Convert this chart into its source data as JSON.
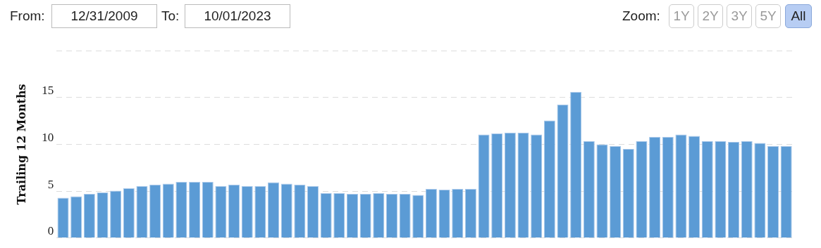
{
  "chart_data": {
    "type": "bar",
    "ylabel": "Trailing 12 Months",
    "categories": [
      null,
      null,
      null,
      null,
      null,
      null,
      null,
      null,
      null,
      null,
      null,
      null,
      null,
      null,
      null,
      null,
      null,
      null,
      null,
      null,
      null,
      null,
      null,
      null,
      null,
      null,
      null,
      null,
      null,
      null,
      null,
      null,
      null,
      null,
      null,
      null,
      null,
      null,
      null,
      null,
      null,
      null,
      null,
      null,
      null,
      null,
      null,
      null,
      null,
      null,
      null,
      null,
      null,
      null,
      null,
      null
    ],
    "values": [
      4.3,
      4.45,
      4.7,
      4.85,
      5.05,
      5.3,
      5.55,
      5.7,
      5.8,
      6.0,
      6.0,
      6.0,
      5.55,
      5.7,
      5.55,
      5.55,
      5.95,
      5.8,
      5.7,
      5.55,
      4.8,
      4.8,
      4.7,
      4.7,
      4.8,
      4.7,
      4.7,
      4.6,
      5.25,
      5.15,
      5.25,
      5.25,
      11.05,
      11.15,
      11.25,
      11.25,
      11.05,
      12.55,
      14.25,
      15.6,
      10.35,
      10.0,
      9.8,
      9.5,
      10.35,
      10.8,
      10.8,
      11.05,
      10.9,
      10.35,
      10.35,
      10.25,
      10.35,
      10.15,
      9.8,
      9.8
    ],
    "color": "#5b9bd5",
    "ylim": [
      0,
      20
    ],
    "yticks": [
      0,
      5,
      10,
      15,
      {
        "value": 20,
        "label": null
      }
    ],
    "grid": "y",
    "tick_labels": "y",
    "legend": false,
    "annotations": [
      "From:",
      "12/31/2009",
      "To:",
      "10/01/2023",
      "Zoom:",
      "1Y",
      "2Y",
      "3Y",
      "5Y",
      "All"
    ]
  }
}
